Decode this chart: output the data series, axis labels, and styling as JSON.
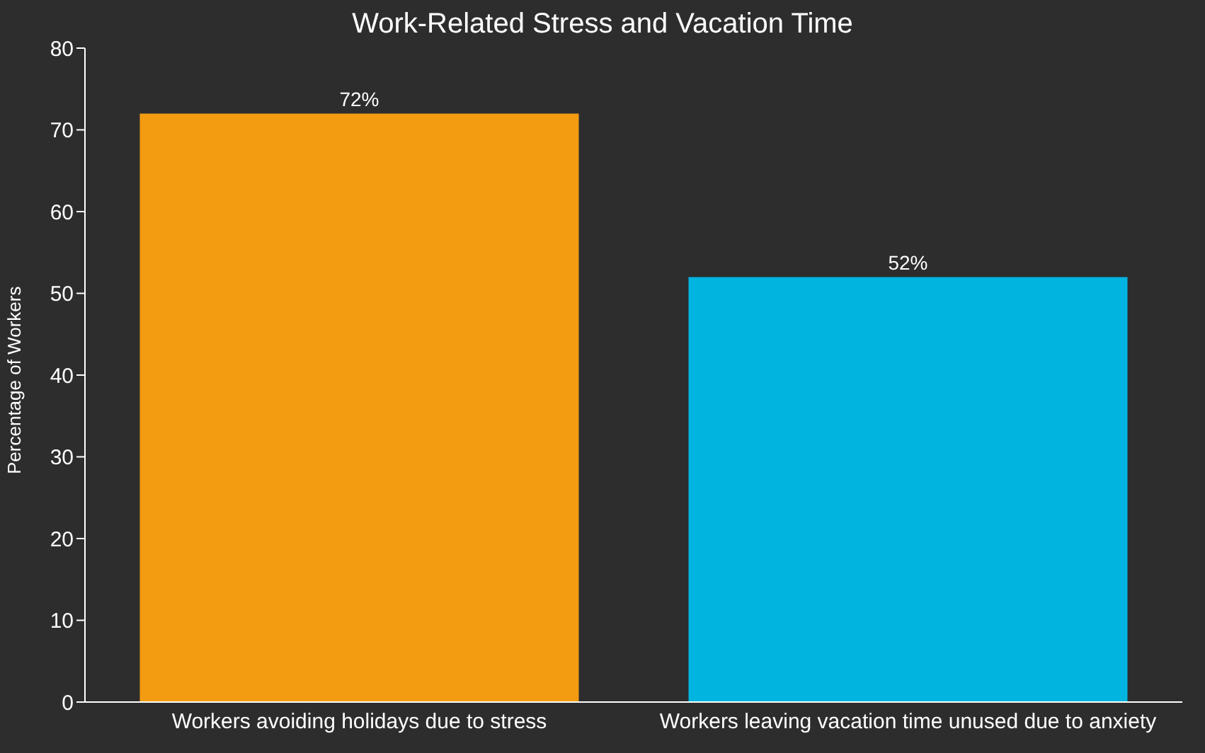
{
  "chart_data": {
    "type": "bar",
    "title": "Work-Related Stress and Vacation Time",
    "ylabel": "Percentage of Workers",
    "categories": [
      "Workers avoiding holidays due to stress",
      "Workers leaving vacation time unused due to anxiety"
    ],
    "values": [
      72,
      52
    ],
    "colors": [
      "#f39c12",
      "#00b4e0"
    ],
    "value_labels": [
      "72%",
      "52%"
    ],
    "ylim": [
      0,
      80
    ],
    "yticks": [
      0,
      10,
      20,
      30,
      40,
      50,
      60,
      70,
      80
    ],
    "grid": false
  }
}
